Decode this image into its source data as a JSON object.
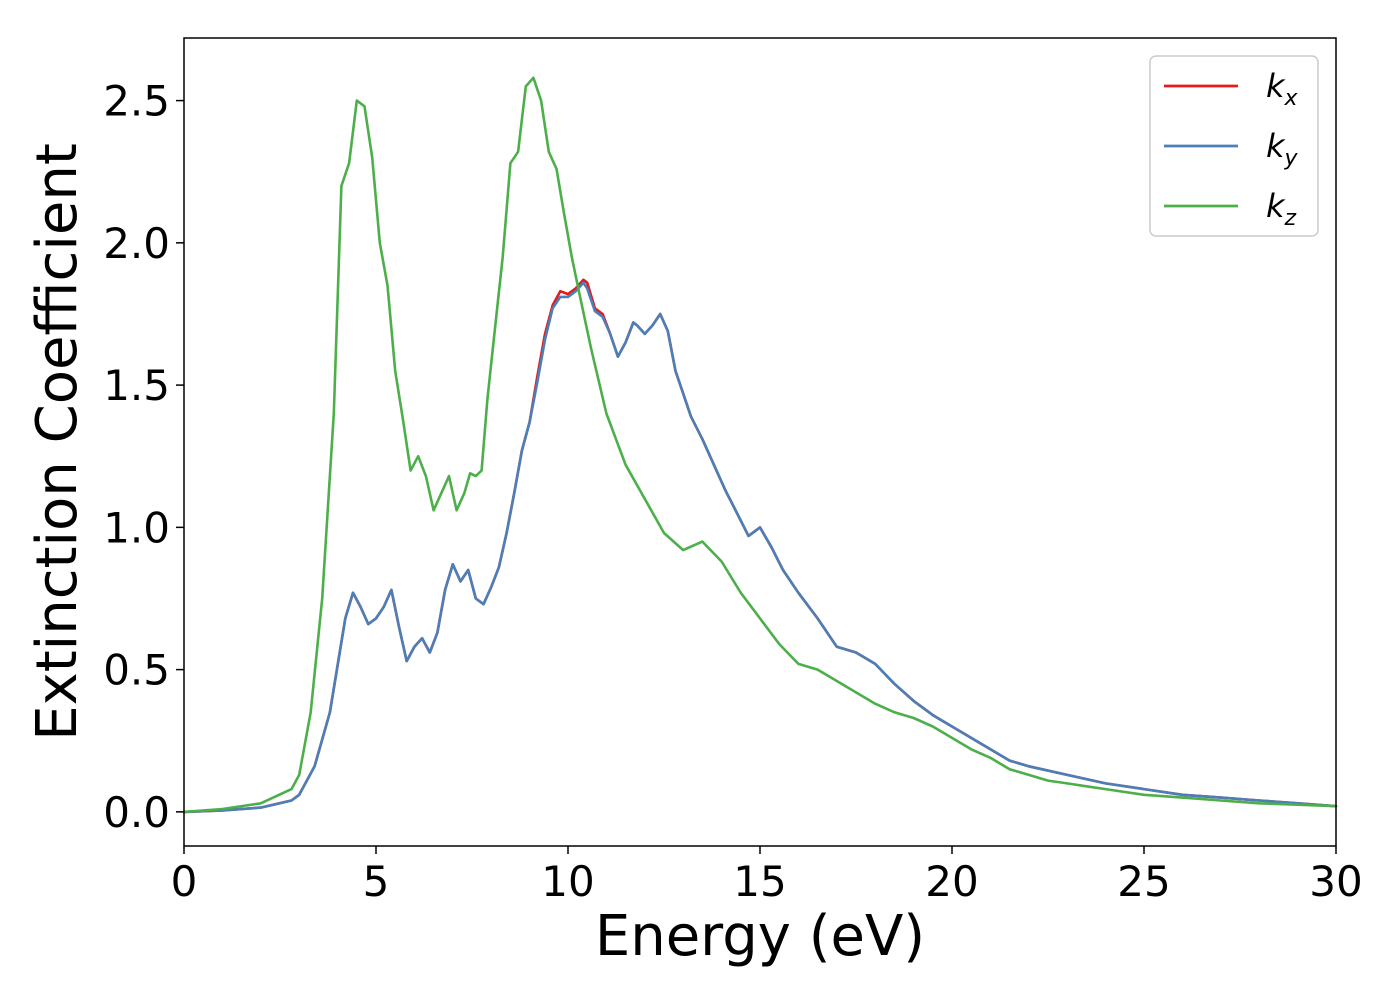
{
  "chart_data": {
    "type": "line",
    "title": "",
    "xlabel": "Energy (eV)",
    "ylabel": "Extinction Coefficient",
    "xlim": [
      0,
      30
    ],
    "ylim": [
      -0.12,
      2.72
    ],
    "xticks": [
      0,
      5,
      10,
      15,
      20,
      25,
      30
    ],
    "xtick_labels": [
      "0",
      "5",
      "10",
      "15",
      "20",
      "25",
      "30"
    ],
    "yticks": [
      0.0,
      0.5,
      1.0,
      1.5,
      2.0,
      2.5
    ],
    "ytick_labels": [
      "0.0",
      "0.5",
      "1.0",
      "1.5",
      "2.0",
      "2.5"
    ],
    "grid": false,
    "legend_position": "top-right",
    "series": [
      {
        "name": "k_x",
        "label_base": "k",
        "label_sub": "x",
        "color": "#e41a1c",
        "x": [
          0,
          1,
          2,
          2.8,
          3.0,
          3.4,
          3.8,
          4.2,
          4.4,
          4.6,
          4.8,
          5.0,
          5.2,
          5.4,
          5.6,
          5.8,
          6.0,
          6.2,
          6.4,
          6.6,
          6.8,
          7.0,
          7.2,
          7.4,
          7.6,
          7.8,
          8.0,
          8.2,
          8.4,
          8.6,
          8.8,
          9.0,
          9.2,
          9.4,
          9.6,
          9.8,
          10.0,
          10.2,
          10.4,
          10.5,
          10.7,
          10.9,
          11.1,
          11.3,
          11.5,
          11.7,
          11.8,
          12.0,
          12.2,
          12.4,
          12.6,
          12.8,
          13.0,
          13.2,
          13.5,
          13.8,
          14.1,
          14.4,
          14.7,
          15.0,
          15.3,
          15.6,
          16.0,
          16.5,
          17.0,
          17.5,
          18.0,
          18.5,
          19.0,
          19.5,
          20.0,
          20.5,
          21.0,
          21.5,
          22.0,
          23.0,
          24.0,
          25.0,
          26.0,
          27.0,
          28.0,
          29.0,
          30.0
        ],
        "y": [
          0.0,
          0.005,
          0.015,
          0.04,
          0.06,
          0.16,
          0.35,
          0.68,
          0.77,
          0.72,
          0.66,
          0.68,
          0.72,
          0.78,
          0.65,
          0.53,
          0.58,
          0.61,
          0.56,
          0.63,
          0.78,
          0.87,
          0.81,
          0.85,
          0.75,
          0.73,
          0.79,
          0.86,
          0.98,
          1.12,
          1.27,
          1.37,
          1.53,
          1.68,
          1.78,
          1.83,
          1.82,
          1.84,
          1.87,
          1.86,
          1.77,
          1.75,
          1.68,
          1.6,
          1.65,
          1.72,
          1.71,
          1.68,
          1.71,
          1.75,
          1.69,
          1.55,
          1.47,
          1.39,
          1.31,
          1.22,
          1.13,
          1.05,
          0.97,
          1.0,
          0.93,
          0.85,
          0.77,
          0.68,
          0.58,
          0.56,
          0.52,
          0.45,
          0.39,
          0.34,
          0.3,
          0.26,
          0.22,
          0.18,
          0.16,
          0.13,
          0.1,
          0.08,
          0.06,
          0.05,
          0.04,
          0.03,
          0.02
        ]
      },
      {
        "name": "k_y",
        "label_base": "k",
        "label_sub": "y",
        "color": "#4a7fb8",
        "x": [
          0,
          1,
          2,
          2.8,
          3.0,
          3.4,
          3.8,
          4.2,
          4.4,
          4.6,
          4.8,
          5.0,
          5.2,
          5.4,
          5.6,
          5.8,
          6.0,
          6.2,
          6.4,
          6.6,
          6.8,
          7.0,
          7.2,
          7.4,
          7.6,
          7.8,
          8.0,
          8.2,
          8.4,
          8.6,
          8.8,
          9.0,
          9.2,
          9.4,
          9.6,
          9.8,
          10.0,
          10.2,
          10.4,
          10.5,
          10.7,
          10.9,
          11.1,
          11.3,
          11.5,
          11.7,
          11.8,
          12.0,
          12.2,
          12.4,
          12.6,
          12.8,
          13.0,
          13.2,
          13.5,
          13.8,
          14.1,
          14.4,
          14.7,
          15.0,
          15.3,
          15.6,
          16.0,
          16.5,
          17.0,
          17.5,
          18.0,
          18.5,
          19.0,
          19.5,
          20.0,
          20.5,
          21.0,
          21.5,
          22.0,
          23.0,
          24.0,
          25.0,
          26.0,
          27.0,
          28.0,
          29.0,
          30.0
        ],
        "y": [
          0.0,
          0.005,
          0.015,
          0.04,
          0.06,
          0.16,
          0.35,
          0.68,
          0.77,
          0.72,
          0.66,
          0.68,
          0.72,
          0.78,
          0.65,
          0.53,
          0.58,
          0.61,
          0.56,
          0.63,
          0.78,
          0.87,
          0.81,
          0.85,
          0.75,
          0.73,
          0.79,
          0.86,
          0.98,
          1.12,
          1.27,
          1.37,
          1.51,
          1.66,
          1.77,
          1.81,
          1.81,
          1.83,
          1.86,
          1.84,
          1.76,
          1.74,
          1.68,
          1.6,
          1.65,
          1.72,
          1.71,
          1.68,
          1.71,
          1.75,
          1.69,
          1.55,
          1.47,
          1.39,
          1.31,
          1.22,
          1.13,
          1.05,
          0.97,
          1.0,
          0.93,
          0.85,
          0.77,
          0.68,
          0.58,
          0.56,
          0.52,
          0.45,
          0.39,
          0.34,
          0.3,
          0.26,
          0.22,
          0.18,
          0.16,
          0.13,
          0.1,
          0.08,
          0.06,
          0.05,
          0.04,
          0.03,
          0.02
        ]
      },
      {
        "name": "k_z",
        "label_base": "k",
        "label_sub": "z",
        "color": "#4daf4a",
        "x": [
          0,
          1,
          2,
          2.8,
          3.0,
          3.3,
          3.6,
          3.9,
          4.1,
          4.3,
          4.5,
          4.7,
          4.9,
          5.1,
          5.3,
          5.5,
          5.7,
          5.9,
          6.1,
          6.3,
          6.5,
          6.7,
          6.9,
          7.1,
          7.3,
          7.45,
          7.6,
          7.75,
          7.9,
          8.1,
          8.3,
          8.5,
          8.7,
          8.9,
          9.1,
          9.3,
          9.5,
          9.7,
          9.9,
          10.1,
          10.3,
          10.6,
          11.0,
          11.5,
          12.0,
          12.5,
          13.0,
          13.5,
          14.0,
          14.5,
          15.0,
          15.5,
          16.0,
          16.5,
          17.0,
          17.5,
          18.0,
          18.5,
          19.0,
          19.5,
          20.0,
          20.5,
          21.0,
          21.5,
          22.0,
          22.5,
          23.0,
          23.5,
          24.0,
          25.0,
          26.0,
          27.0,
          28.0,
          29.0,
          30.0
        ],
        "y": [
          0.0,
          0.01,
          0.03,
          0.08,
          0.13,
          0.35,
          0.75,
          1.4,
          2.2,
          2.28,
          2.5,
          2.48,
          2.3,
          2.0,
          1.85,
          1.55,
          1.38,
          1.2,
          1.25,
          1.18,
          1.06,
          1.12,
          1.18,
          1.06,
          1.12,
          1.19,
          1.18,
          1.2,
          1.45,
          1.7,
          1.95,
          2.28,
          2.32,
          2.55,
          2.58,
          2.5,
          2.32,
          2.26,
          2.1,
          1.95,
          1.82,
          1.63,
          1.4,
          1.22,
          1.1,
          0.98,
          0.92,
          0.95,
          0.88,
          0.77,
          0.68,
          0.59,
          0.52,
          0.5,
          0.46,
          0.42,
          0.38,
          0.35,
          0.33,
          0.3,
          0.26,
          0.22,
          0.19,
          0.15,
          0.13,
          0.11,
          0.1,
          0.09,
          0.08,
          0.06,
          0.05,
          0.04,
          0.03,
          0.025,
          0.02
        ]
      }
    ]
  }
}
